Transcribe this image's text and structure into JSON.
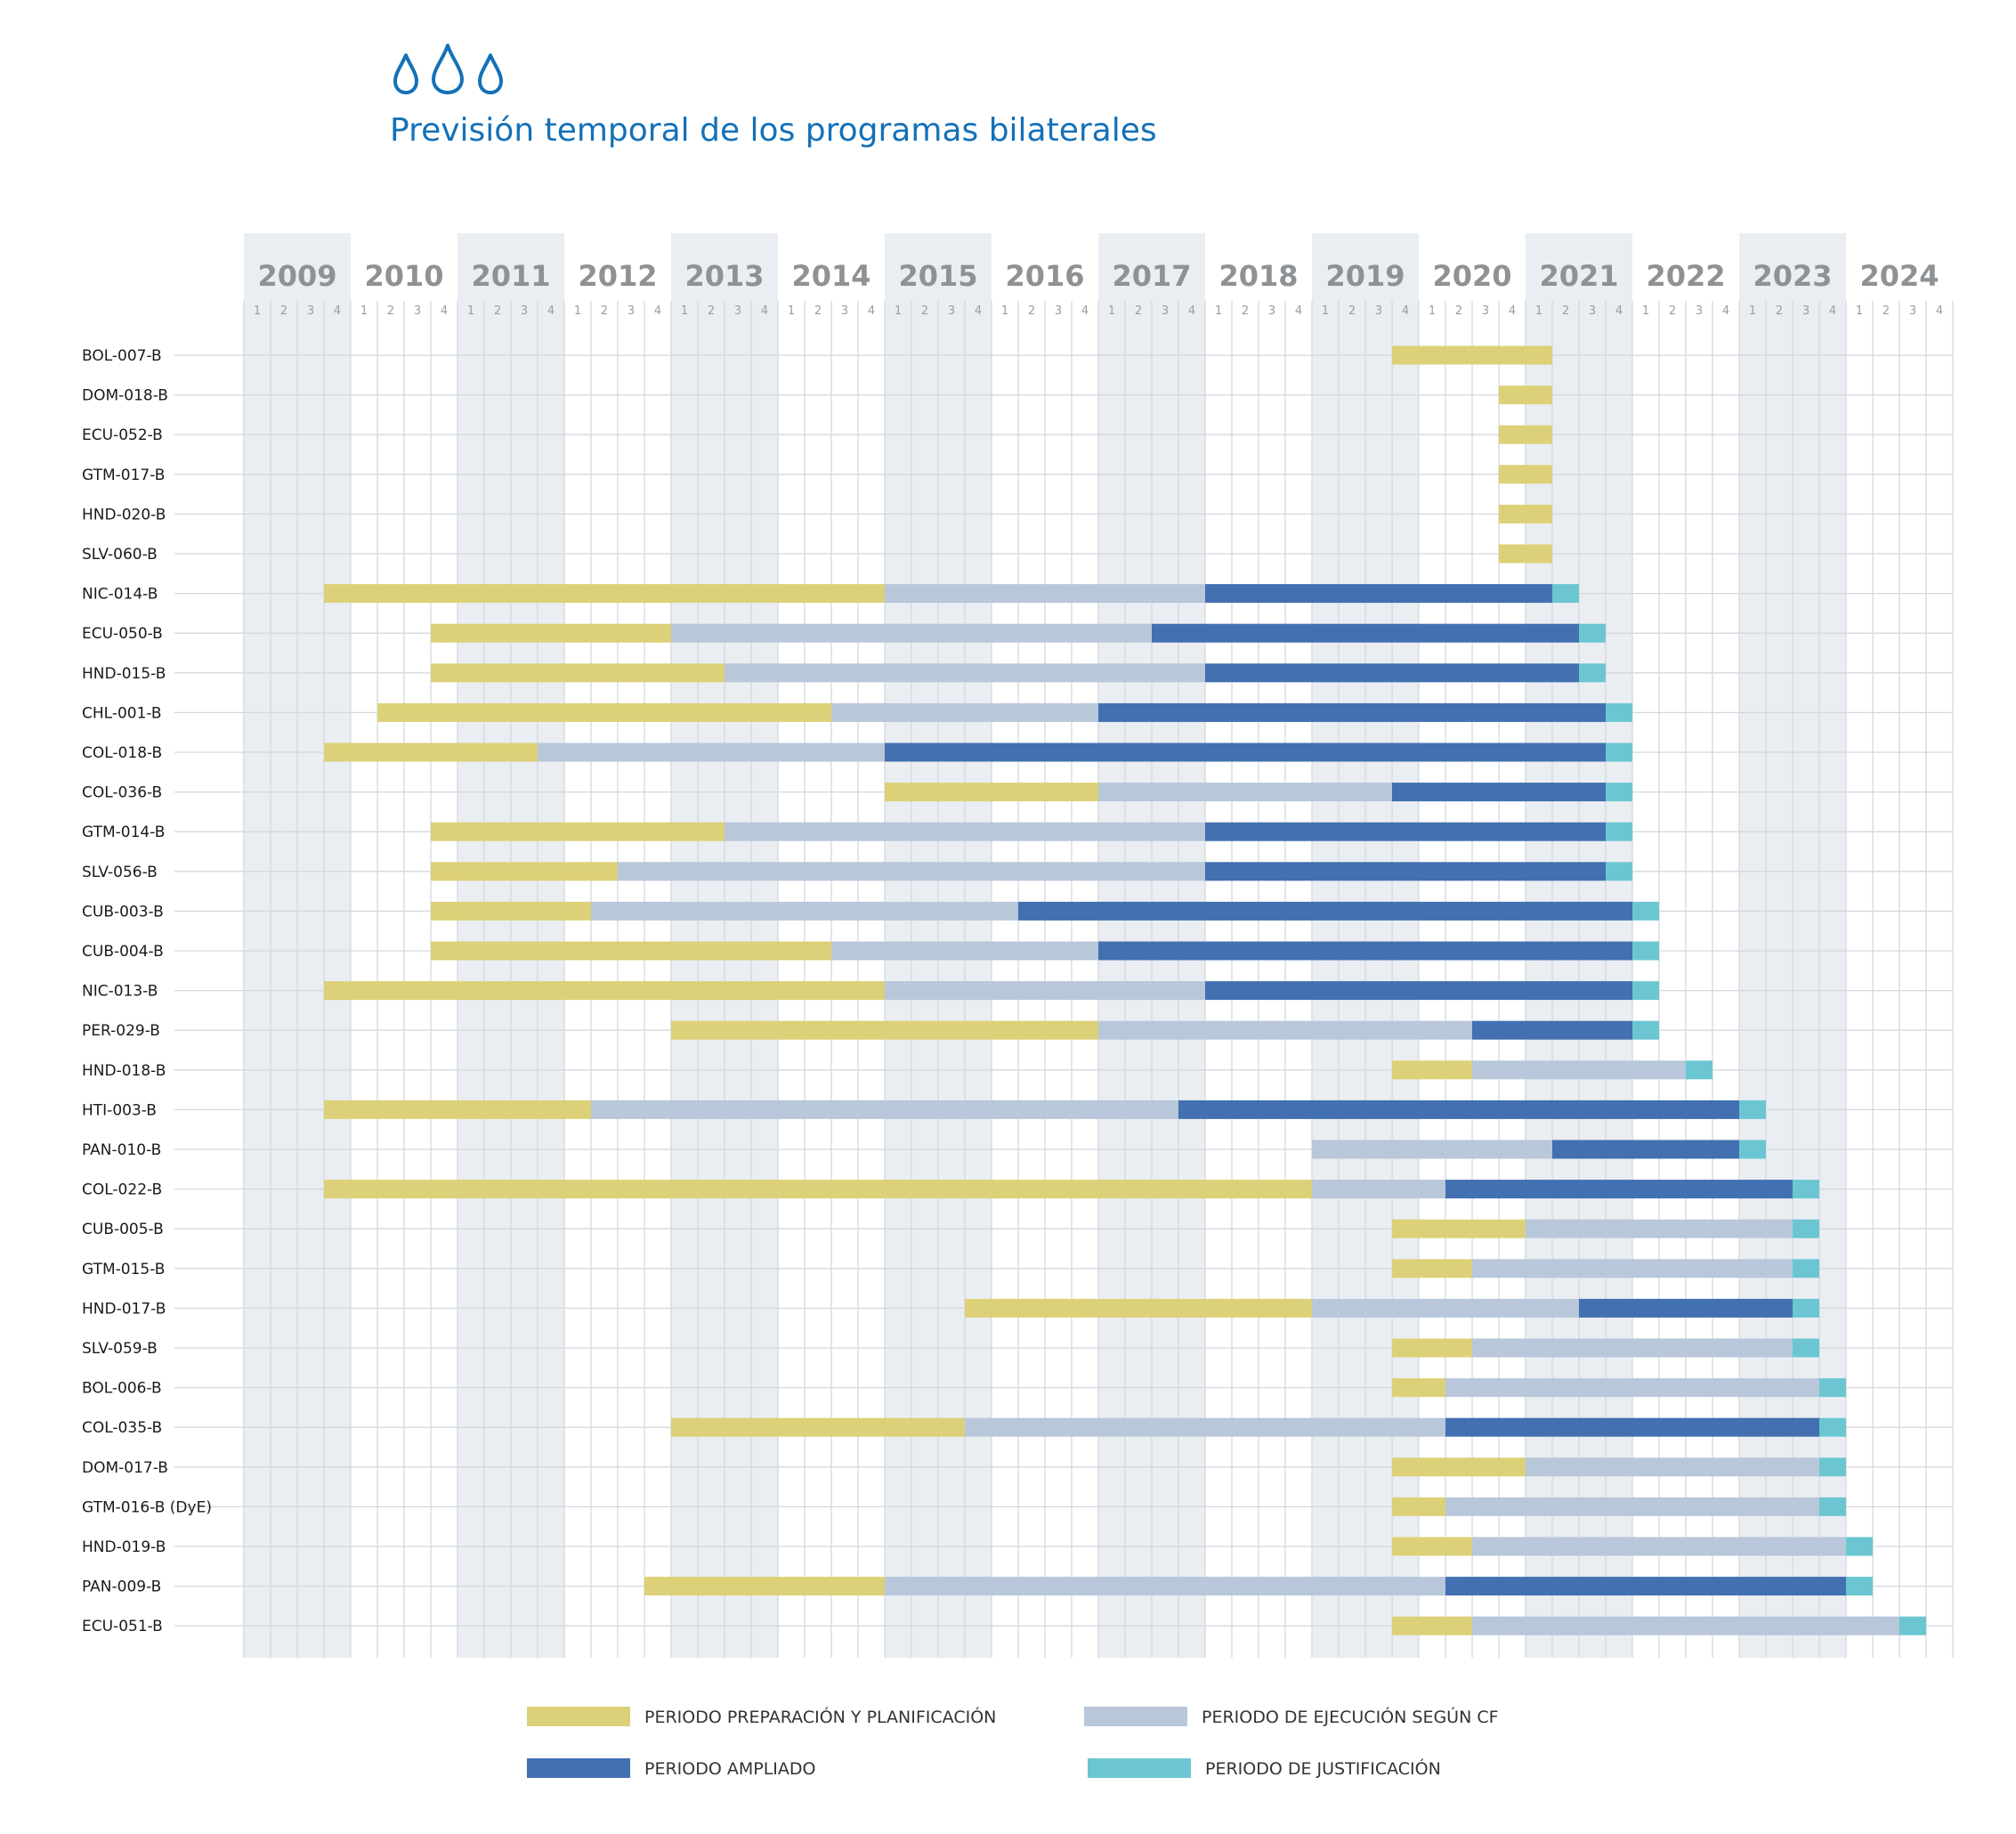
{
  "page": {
    "title": "Previsión temporal de los programas bilaterales",
    "title_color": "#1471b8",
    "icon": "water-drops-icon"
  },
  "chart_data": {
    "type": "gantt",
    "title": "Previsión temporal de los programas bilaterales",
    "time_unit": "quarter",
    "years": [
      "2009",
      "2010",
      "2011",
      "2012",
      "2013",
      "2014",
      "2015",
      "2016",
      "2017",
      "2018",
      "2019",
      "2020",
      "2021",
      "2022",
      "2023",
      "2024"
    ],
    "quarter_labels": [
      "1",
      "2",
      "3",
      "4"
    ],
    "colors": {
      "prep": "#dcd178",
      "exec": "#b8c7da",
      "amp": "#4270b0",
      "just": "#6bc6d2",
      "band": "#eaeef2",
      "grid": "#d4d8dc"
    },
    "legend": [
      {
        "key": "prep",
        "label": "PERIODO PREPARACIÓN Y PLANIFICACIÓN"
      },
      {
        "key": "exec",
        "label": "PERIODO DE EJECUCIÓN SEGÚN CF"
      },
      {
        "key": "amp",
        "label": "PERIODO AMPLIADO"
      },
      {
        "key": "just",
        "label": "PERIODO DE JUSTIFICACIÓN"
      }
    ],
    "rows": [
      {
        "name": "BOL-007-B",
        "segments": [
          {
            "type": "prep",
            "start": "2019-Q4",
            "end": "2021-Q1"
          }
        ]
      },
      {
        "name": "DOM-018-B",
        "segments": [
          {
            "type": "prep",
            "start": "2020-Q4",
            "end": "2021-Q1"
          }
        ]
      },
      {
        "name": "ECU-052-B",
        "segments": [
          {
            "type": "prep",
            "start": "2020-Q4",
            "end": "2021-Q1"
          }
        ]
      },
      {
        "name": "GTM-017-B",
        "segments": [
          {
            "type": "prep",
            "start": "2020-Q4",
            "end": "2021-Q1"
          }
        ]
      },
      {
        "name": "HND-020-B",
        "segments": [
          {
            "type": "prep",
            "start": "2020-Q4",
            "end": "2021-Q1"
          }
        ]
      },
      {
        "name": "SLV-060-B",
        "segments": [
          {
            "type": "prep",
            "start": "2020-Q4",
            "end": "2021-Q1"
          }
        ]
      },
      {
        "name": "NIC-014-B",
        "segments": [
          {
            "type": "prep",
            "start": "2009-Q4",
            "end": "2014-Q4"
          },
          {
            "type": "exec",
            "start": "2015-Q1",
            "end": "2017-Q4"
          },
          {
            "type": "amp",
            "start": "2018-Q1",
            "end": "2021-Q1"
          },
          {
            "type": "just",
            "start": "2021-Q2",
            "end": "2021-Q2"
          }
        ]
      },
      {
        "name": "ECU-050-B",
        "segments": [
          {
            "type": "prep",
            "start": "2010-Q4",
            "end": "2012-Q4"
          },
          {
            "type": "exec",
            "start": "2013-Q1",
            "end": "2017-Q2"
          },
          {
            "type": "amp",
            "start": "2017-Q3",
            "end": "2021-Q2"
          },
          {
            "type": "just",
            "start": "2021-Q3",
            "end": "2021-Q3"
          }
        ]
      },
      {
        "name": "HND-015-B",
        "segments": [
          {
            "type": "prep",
            "start": "2010-Q4",
            "end": "2013-Q2"
          },
          {
            "type": "exec",
            "start": "2013-Q3",
            "end": "2017-Q4"
          },
          {
            "type": "amp",
            "start": "2018-Q1",
            "end": "2021-Q2"
          },
          {
            "type": "just",
            "start": "2021-Q3",
            "end": "2021-Q3"
          }
        ]
      },
      {
        "name": "CHL-001-B",
        "segments": [
          {
            "type": "prep",
            "start": "2010-Q2",
            "end": "2014-Q2"
          },
          {
            "type": "exec",
            "start": "2014-Q3",
            "end": "2016-Q4"
          },
          {
            "type": "amp",
            "start": "2017-Q1",
            "end": "2021-Q3"
          },
          {
            "type": "just",
            "start": "2021-Q4",
            "end": "2021-Q4"
          }
        ]
      },
      {
        "name": "COL-018-B",
        "segments": [
          {
            "type": "prep",
            "start": "2009-Q4",
            "end": "2011-Q3"
          },
          {
            "type": "exec",
            "start": "2011-Q4",
            "end": "2014-Q4"
          },
          {
            "type": "amp",
            "start": "2015-Q1",
            "end": "2021-Q3"
          },
          {
            "type": "just",
            "start": "2021-Q4",
            "end": "2021-Q4"
          }
        ]
      },
      {
        "name": "COL-036-B",
        "segments": [
          {
            "type": "prep",
            "start": "2015-Q1",
            "end": "2016-Q4"
          },
          {
            "type": "exec",
            "start": "2017-Q1",
            "end": "2019-Q3"
          },
          {
            "type": "amp",
            "start": "2019-Q4",
            "end": "2021-Q3"
          },
          {
            "type": "just",
            "start": "2021-Q4",
            "end": "2021-Q4"
          }
        ]
      },
      {
        "name": "GTM-014-B",
        "segments": [
          {
            "type": "prep",
            "start": "2010-Q4",
            "end": "2013-Q2"
          },
          {
            "type": "exec",
            "start": "2013-Q3",
            "end": "2017-Q4"
          },
          {
            "type": "amp",
            "start": "2018-Q1",
            "end": "2021-Q3"
          },
          {
            "type": "just",
            "start": "2021-Q4",
            "end": "2021-Q4"
          }
        ]
      },
      {
        "name": "SLV-056-B",
        "segments": [
          {
            "type": "prep",
            "start": "2010-Q4",
            "end": "2012-Q2"
          },
          {
            "type": "exec",
            "start": "2012-Q3",
            "end": "2017-Q4"
          },
          {
            "type": "amp",
            "start": "2018-Q1",
            "end": "2021-Q3"
          },
          {
            "type": "just",
            "start": "2021-Q4",
            "end": "2021-Q4"
          }
        ]
      },
      {
        "name": "CUB-003-B",
        "segments": [
          {
            "type": "prep",
            "start": "2010-Q4",
            "end": "2012-Q1"
          },
          {
            "type": "exec",
            "start": "2012-Q2",
            "end": "2016-Q1"
          },
          {
            "type": "amp",
            "start": "2016-Q2",
            "end": "2021-Q4"
          },
          {
            "type": "just",
            "start": "2022-Q1",
            "end": "2022-Q1"
          }
        ]
      },
      {
        "name": "CUB-004-B",
        "segments": [
          {
            "type": "prep",
            "start": "2010-Q4",
            "end": "2014-Q2"
          },
          {
            "type": "exec",
            "start": "2014-Q3",
            "end": "2016-Q4"
          },
          {
            "type": "amp",
            "start": "2017-Q1",
            "end": "2021-Q4"
          },
          {
            "type": "just",
            "start": "2022-Q1",
            "end": "2022-Q1"
          }
        ]
      },
      {
        "name": "NIC-013-B",
        "segments": [
          {
            "type": "prep",
            "start": "2009-Q4",
            "end": "2014-Q4"
          },
          {
            "type": "exec",
            "start": "2015-Q1",
            "end": "2017-Q4"
          },
          {
            "type": "amp",
            "start": "2018-Q1",
            "end": "2021-Q4"
          },
          {
            "type": "just",
            "start": "2022-Q1",
            "end": "2022-Q1"
          }
        ]
      },
      {
        "name": "PER-029-B",
        "segments": [
          {
            "type": "prep",
            "start": "2013-Q1",
            "end": "2016-Q4"
          },
          {
            "type": "exec",
            "start": "2017-Q1",
            "end": "2020-Q2"
          },
          {
            "type": "amp",
            "start": "2020-Q3",
            "end": "2021-Q4"
          },
          {
            "type": "just",
            "start": "2022-Q1",
            "end": "2022-Q1"
          }
        ]
      },
      {
        "name": "HND-018-B",
        "segments": [
          {
            "type": "prep",
            "start": "2019-Q4",
            "end": "2020-Q2"
          },
          {
            "type": "exec",
            "start": "2020-Q3",
            "end": "2022-Q2"
          },
          {
            "type": "just",
            "start": "2022-Q3",
            "end": "2022-Q3"
          }
        ]
      },
      {
        "name": "HTI-003-B",
        "segments": [
          {
            "type": "prep",
            "start": "2009-Q4",
            "end": "2012-Q1"
          },
          {
            "type": "exec",
            "start": "2012-Q2",
            "end": "2017-Q3"
          },
          {
            "type": "amp",
            "start": "2017-Q4",
            "end": "2022-Q4"
          },
          {
            "type": "just",
            "start": "2023-Q1",
            "end": "2023-Q1"
          }
        ]
      },
      {
        "name": "PAN-010-B",
        "segments": [
          {
            "type": "exec",
            "start": "2019-Q1",
            "end": "2021-Q1"
          },
          {
            "type": "amp",
            "start": "2021-Q2",
            "end": "2022-Q4"
          },
          {
            "type": "just",
            "start": "2023-Q1",
            "end": "2023-Q1"
          }
        ]
      },
      {
        "name": "COL-022-B",
        "segments": [
          {
            "type": "prep",
            "start": "2009-Q4",
            "end": "2018-Q4"
          },
          {
            "type": "exec",
            "start": "2019-Q1",
            "end": "2020-Q1"
          },
          {
            "type": "amp",
            "start": "2020-Q2",
            "end": "2023-Q2"
          },
          {
            "type": "just",
            "start": "2023-Q3",
            "end": "2023-Q3"
          }
        ]
      },
      {
        "name": "CUB-005-B",
        "segments": [
          {
            "type": "prep",
            "start": "2019-Q4",
            "end": "2020-Q4"
          },
          {
            "type": "exec",
            "start": "2021-Q1",
            "end": "2023-Q2"
          },
          {
            "type": "just",
            "start": "2023-Q3",
            "end": "2023-Q3"
          }
        ]
      },
      {
        "name": "GTM-015-B",
        "segments": [
          {
            "type": "prep",
            "start": "2019-Q4",
            "end": "2020-Q2"
          },
          {
            "type": "exec",
            "start": "2020-Q3",
            "end": "2023-Q2"
          },
          {
            "type": "just",
            "start": "2023-Q3",
            "end": "2023-Q3"
          }
        ]
      },
      {
        "name": "HND-017-B",
        "segments": [
          {
            "type": "prep",
            "start": "2015-Q4",
            "end": "2018-Q4"
          },
          {
            "type": "exec",
            "start": "2019-Q1",
            "end": "2021-Q2"
          },
          {
            "type": "amp",
            "start": "2021-Q3",
            "end": "2023-Q2"
          },
          {
            "type": "just",
            "start": "2023-Q3",
            "end": "2023-Q3"
          }
        ]
      },
      {
        "name": "SLV-059-B",
        "segments": [
          {
            "type": "prep",
            "start": "2019-Q4",
            "end": "2020-Q2"
          },
          {
            "type": "exec",
            "start": "2020-Q3",
            "end": "2023-Q2"
          },
          {
            "type": "just",
            "start": "2023-Q3",
            "end": "2023-Q3"
          }
        ]
      },
      {
        "name": "BOL-006-B",
        "segments": [
          {
            "type": "prep",
            "start": "2019-Q4",
            "end": "2020-Q1"
          },
          {
            "type": "exec",
            "start": "2020-Q2",
            "end": "2023-Q3"
          },
          {
            "type": "just",
            "start": "2023-Q4",
            "end": "2023-Q4"
          }
        ]
      },
      {
        "name": "COL-035-B",
        "segments": [
          {
            "type": "prep",
            "start": "2013-Q1",
            "end": "2015-Q3"
          },
          {
            "type": "exec",
            "start": "2015-Q4",
            "end": "2020-Q1"
          },
          {
            "type": "amp",
            "start": "2020-Q2",
            "end": "2023-Q3"
          },
          {
            "type": "just",
            "start": "2023-Q4",
            "end": "2023-Q4"
          }
        ]
      },
      {
        "name": "DOM-017-B",
        "segments": [
          {
            "type": "prep",
            "start": "2019-Q4",
            "end": "2020-Q4"
          },
          {
            "type": "exec",
            "start": "2021-Q1",
            "end": "2023-Q3"
          },
          {
            "type": "just",
            "start": "2023-Q4",
            "end": "2023-Q4"
          }
        ]
      },
      {
        "name": "GTM-016-B (DyE)",
        "segments": [
          {
            "type": "prep",
            "start": "2019-Q4",
            "end": "2020-Q1"
          },
          {
            "type": "exec",
            "start": "2020-Q2",
            "end": "2023-Q3"
          },
          {
            "type": "just",
            "start": "2023-Q4",
            "end": "2023-Q4"
          }
        ]
      },
      {
        "name": "HND-019-B",
        "segments": [
          {
            "type": "prep",
            "start": "2019-Q4",
            "end": "2020-Q2"
          },
          {
            "type": "exec",
            "start": "2020-Q3",
            "end": "2023-Q4"
          },
          {
            "type": "just",
            "start": "2024-Q1",
            "end": "2024-Q1"
          }
        ]
      },
      {
        "name": "PAN-009-B",
        "segments": [
          {
            "type": "prep",
            "start": "2012-Q4",
            "end": "2014-Q4"
          },
          {
            "type": "exec",
            "start": "2015-Q1",
            "end": "2020-Q1"
          },
          {
            "type": "amp",
            "start": "2020-Q2",
            "end": "2023-Q4"
          },
          {
            "type": "just",
            "start": "2024-Q1",
            "end": "2024-Q1"
          }
        ]
      },
      {
        "name": "ECU-051-B",
        "segments": [
          {
            "type": "prep",
            "start": "2019-Q4",
            "end": "2020-Q2"
          },
          {
            "type": "exec",
            "start": "2020-Q3",
            "end": "2024-Q2"
          },
          {
            "type": "just",
            "start": "2024-Q3",
            "end": "2024-Q3"
          }
        ]
      }
    ]
  }
}
